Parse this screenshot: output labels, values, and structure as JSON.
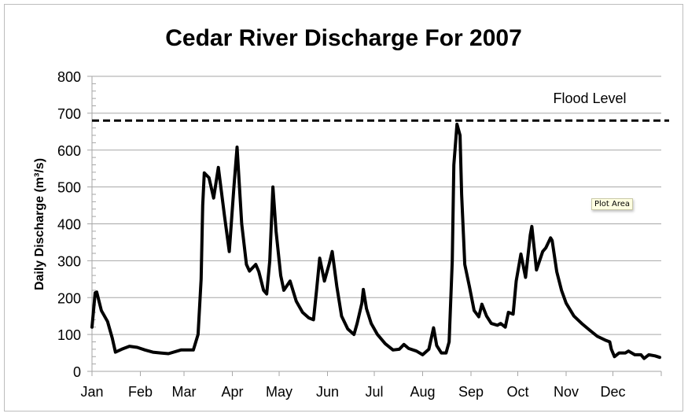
{
  "chart_data": {
    "type": "line",
    "title": "Cedar River Discharge For 2007",
    "xlabel": "",
    "ylabel": "Daily Discharge (m³/s)",
    "ylim": [
      0,
      800
    ],
    "yticks": [
      0,
      100,
      200,
      300,
      400,
      500,
      600,
      700,
      800
    ],
    "xlim": [
      "2007-01-01",
      "2007-12-31"
    ],
    "xticks": [
      {
        "date": "2007-01-01",
        "label": "Jan"
      },
      {
        "date": "2007-02-01",
        "label": "Feb"
      },
      {
        "date": "2007-03-01",
        "label": "Mar"
      },
      {
        "date": "2007-04-01",
        "label": "Apr"
      },
      {
        "date": "2007-05-01",
        "label": "May"
      },
      {
        "date": "2007-06-01",
        "label": "Jun"
      },
      {
        "date": "2007-07-01",
        "label": "Jul"
      },
      {
        "date": "2007-08-01",
        "label": "Aug"
      },
      {
        "date": "2007-09-01",
        "label": "Sep"
      },
      {
        "date": "2007-10-01",
        "label": "Oct"
      },
      {
        "date": "2007-11-01",
        "label": "Nov"
      },
      {
        "date": "2007-12-01",
        "label": "Dec"
      }
    ],
    "grid": "horizontal",
    "line_color": "#000000",
    "reference_line": {
      "label": "Flood Level",
      "value": 680,
      "style": "dashed"
    },
    "series": [
      {
        "points": [
          [
            "2007-01-01",
            120
          ],
          [
            "2007-01-03",
            213
          ],
          [
            "2007-01-04",
            215
          ],
          [
            "2007-01-07",
            165
          ],
          [
            "2007-01-11",
            135
          ],
          [
            "2007-01-14",
            90
          ],
          [
            "2007-01-16",
            52
          ],
          [
            "2007-01-20",
            60
          ],
          [
            "2007-01-25",
            68
          ],
          [
            "2007-01-30",
            65
          ],
          [
            "2007-02-04",
            58
          ],
          [
            "2007-02-09",
            52
          ],
          [
            "2007-02-14",
            50
          ],
          [
            "2007-02-19",
            48
          ],
          [
            "2007-02-27",
            58
          ],
          [
            "2007-03-04",
            58
          ],
          [
            "2007-03-07",
            58
          ],
          [
            "2007-03-10",
            100
          ],
          [
            "2007-03-12",
            250
          ],
          [
            "2007-03-13",
            450
          ],
          [
            "2007-03-14",
            538
          ],
          [
            "2007-03-17",
            525
          ],
          [
            "2007-03-20",
            470
          ],
          [
            "2007-03-23",
            553
          ],
          [
            "2007-03-27",
            420
          ],
          [
            "2007-03-30",
            325
          ],
          [
            "2007-04-02",
            500
          ],
          [
            "2007-04-04",
            608
          ],
          [
            "2007-04-07",
            400
          ],
          [
            "2007-04-10",
            290
          ],
          [
            "2007-04-12",
            272
          ],
          [
            "2007-04-16",
            290
          ],
          [
            "2007-04-18",
            270
          ],
          [
            "2007-04-21",
            220
          ],
          [
            "2007-04-23",
            210
          ],
          [
            "2007-04-25",
            300
          ],
          [
            "2007-04-27",
            500
          ],
          [
            "2007-04-29",
            380
          ],
          [
            "2007-05-02",
            260
          ],
          [
            "2007-05-04",
            220
          ],
          [
            "2007-05-08",
            245
          ],
          [
            "2007-05-12",
            190
          ],
          [
            "2007-05-16",
            160
          ],
          [
            "2007-05-20",
            145
          ],
          [
            "2007-05-23",
            140
          ],
          [
            "2007-05-25",
            220
          ],
          [
            "2007-05-27",
            307
          ],
          [
            "2007-05-30",
            245
          ],
          [
            "2007-06-02",
            290
          ],
          [
            "2007-06-04",
            325
          ],
          [
            "2007-06-07",
            230
          ],
          [
            "2007-06-10",
            150
          ],
          [
            "2007-06-14",
            115
          ],
          [
            "2007-06-18",
            100
          ],
          [
            "2007-06-20",
            130
          ],
          [
            "2007-06-23",
            185
          ],
          [
            "2007-06-24",
            222
          ],
          [
            "2007-06-26",
            170
          ],
          [
            "2007-06-29",
            130
          ],
          [
            "2007-07-03",
            100
          ],
          [
            "2007-07-08",
            75
          ],
          [
            "2007-07-13",
            58
          ],
          [
            "2007-07-17",
            60
          ],
          [
            "2007-07-20",
            73
          ],
          [
            "2007-07-23",
            62
          ],
          [
            "2007-07-28",
            55
          ],
          [
            "2007-08-01",
            45
          ],
          [
            "2007-08-05",
            60
          ],
          [
            "2007-08-08",
            118
          ],
          [
            "2007-08-10",
            70
          ],
          [
            "2007-08-13",
            50
          ],
          [
            "2007-08-16",
            50
          ],
          [
            "2007-08-18",
            80
          ],
          [
            "2007-08-20",
            300
          ],
          [
            "2007-08-21",
            560
          ],
          [
            "2007-08-23",
            670
          ],
          [
            "2007-08-25",
            640
          ],
          [
            "2007-08-26",
            480
          ],
          [
            "2007-08-28",
            290
          ],
          [
            "2007-08-31",
            230
          ],
          [
            "2007-09-03",
            165
          ],
          [
            "2007-09-06",
            148
          ],
          [
            "2007-09-08",
            182
          ],
          [
            "2007-09-11",
            150
          ],
          [
            "2007-09-14",
            130
          ],
          [
            "2007-09-18",
            125
          ],
          [
            "2007-09-20",
            130
          ],
          [
            "2007-09-23",
            120
          ],
          [
            "2007-09-25",
            160
          ],
          [
            "2007-09-28",
            155
          ],
          [
            "2007-09-30",
            245
          ],
          [
            "2007-10-03",
            318
          ],
          [
            "2007-10-06",
            255
          ],
          [
            "2007-10-09",
            370
          ],
          [
            "2007-10-10",
            393
          ],
          [
            "2007-10-13",
            275
          ],
          [
            "2007-10-17",
            325
          ],
          [
            "2007-10-19",
            335
          ],
          [
            "2007-10-22",
            362
          ],
          [
            "2007-10-23",
            355
          ],
          [
            "2007-10-26",
            270
          ],
          [
            "2007-10-29",
            220
          ],
          [
            "2007-11-01",
            185
          ],
          [
            "2007-11-06",
            150
          ],
          [
            "2007-11-11",
            130
          ],
          [
            "2007-11-16",
            112
          ],
          [
            "2007-11-21",
            95
          ],
          [
            "2007-11-26",
            85
          ],
          [
            "2007-11-29",
            80
          ],
          [
            "2007-11-30",
            60
          ],
          [
            "2007-12-02",
            40
          ],
          [
            "2007-12-05",
            50
          ],
          [
            "2007-12-09",
            50
          ],
          [
            "2007-12-11",
            55
          ],
          [
            "2007-12-15",
            45
          ],
          [
            "2007-12-19",
            45
          ],
          [
            "2007-12-21",
            35
          ],
          [
            "2007-12-24",
            45
          ],
          [
            "2007-12-28",
            42
          ],
          [
            "2007-12-31",
            38
          ]
        ]
      }
    ]
  },
  "tooltip": {
    "text": "Plot Area"
  }
}
